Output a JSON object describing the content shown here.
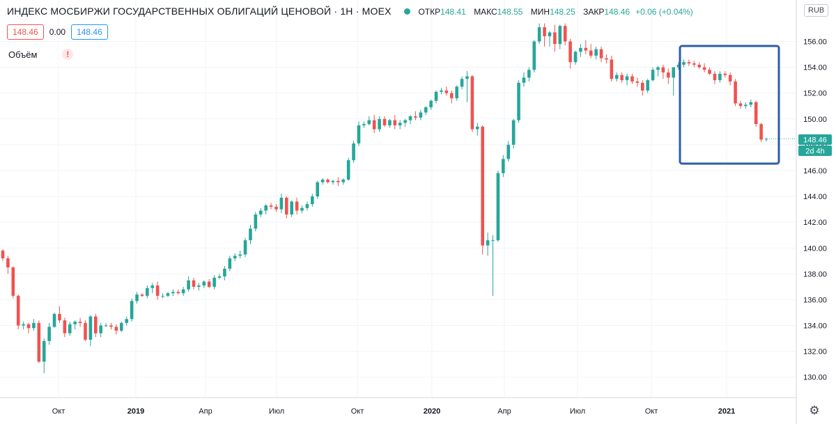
{
  "header": {
    "title": "ИНДЕКС МОСБИРЖИ ГОСУДАРСТВЕННЫХ ОБЛИГАЦИЙ ЦЕНОВОЙ · 1Н · MOEX",
    "open_label": "ОТКР",
    "open_value": "148.41",
    "high_label": "МАКС",
    "high_value": "148.55",
    "low_label": "МИН",
    "low_value": "148.25",
    "close_label": "ЗАКР",
    "close_value": "148.46",
    "change": "+0.06 (+0.04%)"
  },
  "controls": {
    "sell_price": "148.46",
    "spread": "0.00",
    "buy_price": "148.46"
  },
  "volume_label": "Объём",
  "currency": "RUB",
  "price_label": "148.46",
  "countdown_label": "2d 4h",
  "colors": {
    "up": "#26a69a",
    "down": "#ef5350",
    "highlight": "#2b5ea7",
    "grid": "#f0f3fa"
  },
  "chart_data": {
    "type": "candlestick",
    "title": "ИНДЕКС МОСБИРЖИ ГОСУДАРСТВЕННЫХ ОБЛИГАЦИЙ ЦЕНОВОЙ",
    "ylim": [
      129.5,
      157.7
    ],
    "y_ticks": [
      "130.00",
      "132.00",
      "134.00",
      "136.00",
      "138.00",
      "140.00",
      "142.00",
      "144.00",
      "146.00",
      "148.00",
      "150.00",
      "152.00",
      "154.00",
      "156.00"
    ],
    "x_ticks": [
      "Окт",
      "2019",
      "Апр",
      "Июл",
      "Окт",
      "2020",
      "Апр",
      "Июл",
      "Окт",
      "2021"
    ],
    "x_ticks_bold": [
      false,
      true,
      false,
      false,
      false,
      true,
      false,
      false,
      false,
      true
    ],
    "candles": [
      [
        139.8,
        139.9,
        139.0,
        139.2
      ],
      [
        139.2,
        139.4,
        138.0,
        138.5
      ],
      [
        138.5,
        138.6,
        136.1,
        136.3
      ],
      [
        136.3,
        136.4,
        133.7,
        134.0
      ],
      [
        134.0,
        134.3,
        133.7,
        134.1
      ],
      [
        134.1,
        134.2,
        133.4,
        133.8
      ],
      [
        133.8,
        134.5,
        133.6,
        134.2
      ],
      [
        134.2,
        134.4,
        131.1,
        131.2
      ],
      [
        131.2,
        133.0,
        130.3,
        132.8
      ],
      [
        132.8,
        134.2,
        132.5,
        133.9
      ],
      [
        133.9,
        135.0,
        133.8,
        134.9
      ],
      [
        134.9,
        135.5,
        134.2,
        134.4
      ],
      [
        134.4,
        134.6,
        133.1,
        133.4
      ],
      [
        133.4,
        134.3,
        133.2,
        134.1
      ],
      [
        134.1,
        134.4,
        133.7,
        134.3
      ],
      [
        134.3,
        134.6,
        133.9,
        134.2
      ],
      [
        134.2,
        134.4,
        132.8,
        132.9
      ],
      [
        132.9,
        134.8,
        132.4,
        134.7
      ],
      [
        134.7,
        134.9,
        133.1,
        133.4
      ],
      [
        133.4,
        134.2,
        133.1,
        134.0
      ],
      [
        134.0,
        134.2,
        133.9,
        134.0
      ],
      [
        134.0,
        134.2,
        133.7,
        133.9
      ],
      [
        133.9,
        134.1,
        133.3,
        133.6
      ],
      [
        133.6,
        134.3,
        133.5,
        134.2
      ],
      [
        134.2,
        134.7,
        134.0,
        134.5
      ],
      [
        134.5,
        136.1,
        134.3,
        135.9
      ],
      [
        135.9,
        136.6,
        135.7,
        136.4
      ],
      [
        136.4,
        136.5,
        136.2,
        136.3
      ],
      [
        136.3,
        137.1,
        136.1,
        136.9
      ],
      [
        136.9,
        137.3,
        136.5,
        137.1
      ],
      [
        137.1,
        137.4,
        136.0,
        136.3
      ],
      [
        136.3,
        136.5,
        136.1,
        136.3
      ],
      [
        136.3,
        136.6,
        136.2,
        136.5
      ],
      [
        136.5,
        136.8,
        136.3,
        136.6
      ],
      [
        136.6,
        136.8,
        136.4,
        136.5
      ],
      [
        136.5,
        137.0,
        136.3,
        136.8
      ],
      [
        136.8,
        137.8,
        136.6,
        137.5
      ],
      [
        137.5,
        137.7,
        136.8,
        137.0
      ],
      [
        137.0,
        137.3,
        136.7,
        137.1
      ],
      [
        137.1,
        137.5,
        136.9,
        137.4
      ],
      [
        137.4,
        137.6,
        136.9,
        137.0
      ],
      [
        137.0,
        137.9,
        136.8,
        137.7
      ],
      [
        137.7,
        138.0,
        137.6,
        137.8
      ],
      [
        137.8,
        138.6,
        137.5,
        138.4
      ],
      [
        138.4,
        139.4,
        138.2,
        139.2
      ],
      [
        139.2,
        139.6,
        139.0,
        139.4
      ],
      [
        139.4,
        139.8,
        139.2,
        139.5
      ],
      [
        139.5,
        140.8,
        139.3,
        140.6
      ],
      [
        140.6,
        141.8,
        140.3,
        141.5
      ],
      [
        141.5,
        142.8,
        141.3,
        142.6
      ],
      [
        142.6,
        143.1,
        142.4,
        142.9
      ],
      [
        142.9,
        143.4,
        142.6,
        143.3
      ],
      [
        143.3,
        143.5,
        143.0,
        143.2
      ],
      [
        143.2,
        143.4,
        142.8,
        143.0
      ],
      [
        143.0,
        144.2,
        142.7,
        143.9
      ],
      [
        143.9,
        144.0,
        142.3,
        142.6
      ],
      [
        142.6,
        143.7,
        142.4,
        143.6
      ],
      [
        143.6,
        143.9,
        142.6,
        142.9
      ],
      [
        142.9,
        143.3,
        142.7,
        143.1
      ],
      [
        143.1,
        143.6,
        142.9,
        143.4
      ],
      [
        143.4,
        144.2,
        143.2,
        144.0
      ],
      [
        144.0,
        145.2,
        143.8,
        145.1
      ],
      [
        145.1,
        145.4,
        144.9,
        145.3
      ],
      [
        145.3,
        145.4,
        145.0,
        145.1
      ],
      [
        145.1,
        145.3,
        144.9,
        145.2
      ],
      [
        145.2,
        145.5,
        144.8,
        145.1
      ],
      [
        145.1,
        145.4,
        144.9,
        145.3
      ],
      [
        145.3,
        147.0,
        145.2,
        146.8
      ],
      [
        146.8,
        148.3,
        146.6,
        148.1
      ],
      [
        148.1,
        149.8,
        147.9,
        149.5
      ],
      [
        149.5,
        149.8,
        149.3,
        149.6
      ],
      [
        149.6,
        150.2,
        149.5,
        149.9
      ],
      [
        149.9,
        150.3,
        148.9,
        149.2
      ],
      [
        149.2,
        150.2,
        149.0,
        150.0
      ],
      [
        150.0,
        150.2,
        149.4,
        149.5
      ],
      [
        149.5,
        150.0,
        149.3,
        149.9
      ],
      [
        149.9,
        150.3,
        149.2,
        149.5
      ],
      [
        149.5,
        149.9,
        149.2,
        149.7
      ],
      [
        149.7,
        150.0,
        149.4,
        149.9
      ],
      [
        149.9,
        150.3,
        149.6,
        150.2
      ],
      [
        150.2,
        150.6,
        149.9,
        150.1
      ],
      [
        150.1,
        150.7,
        149.9,
        150.5
      ],
      [
        150.5,
        151.0,
        150.3,
        150.9
      ],
      [
        150.9,
        151.5,
        150.7,
        151.4
      ],
      [
        151.4,
        152.2,
        151.2,
        152.1
      ],
      [
        152.1,
        152.4,
        151.9,
        152.2
      ],
      [
        152.2,
        152.5,
        151.8,
        152.0
      ],
      [
        152.0,
        152.2,
        151.2,
        151.6
      ],
      [
        151.6,
        152.6,
        151.4,
        152.5
      ],
      [
        152.5,
        153.3,
        152.3,
        153.1
      ],
      [
        153.1,
        153.7,
        151.3,
        153.3
      ],
      [
        153.3,
        153.4,
        149.0,
        149.2
      ],
      [
        149.2,
        149.7,
        148.7,
        149.4
      ],
      [
        149.4,
        149.5,
        139.5,
        140.2
      ],
      [
        140.2,
        141.2,
        139.4,
        140.6
      ],
      [
        140.6,
        141.0,
        136.3,
        140.6
      ],
      [
        140.6,
        146.0,
        140.5,
        145.8
      ],
      [
        145.8,
        147.2,
        145.5,
        146.9
      ],
      [
        146.9,
        148.3,
        146.7,
        148.0
      ],
      [
        148.0,
        150.0,
        147.7,
        149.9
      ],
      [
        149.9,
        153.0,
        149.7,
        152.8
      ],
      [
        152.8,
        153.6,
        152.5,
        153.2
      ],
      [
        153.2,
        154.0,
        152.9,
        153.8
      ],
      [
        153.8,
        156.1,
        153.6,
        156.0
      ],
      [
        156.0,
        157.4,
        155.8,
        157.1
      ],
      [
        157.1,
        157.4,
        155.6,
        156.4
      ],
      [
        156.4,
        156.8,
        155.6,
        156.7
      ],
      [
        156.7,
        157.3,
        155.2,
        155.8
      ],
      [
        155.8,
        157.3,
        155.4,
        157.2
      ],
      [
        157.2,
        157.4,
        155.7,
        156.0
      ],
      [
        156.0,
        156.2,
        153.9,
        154.4
      ],
      [
        154.4,
        155.3,
        154.2,
        155.2
      ],
      [
        155.2,
        155.8,
        154.8,
        155.5
      ],
      [
        155.5,
        156.1,
        155.0,
        155.3
      ],
      [
        155.3,
        155.8,
        154.7,
        154.9
      ],
      [
        154.9,
        155.6,
        154.6,
        155.4
      ],
      [
        155.4,
        155.6,
        154.4,
        154.7
      ],
      [
        154.7,
        155.0,
        154.3,
        154.6
      ],
      [
        154.6,
        154.9,
        152.9,
        153.1
      ],
      [
        153.1,
        153.6,
        152.9,
        153.4
      ],
      [
        153.4,
        153.6,
        152.8,
        153.0
      ],
      [
        153.0,
        153.5,
        152.6,
        153.3
      ],
      [
        153.3,
        153.5,
        152.7,
        152.9
      ],
      [
        152.9,
        153.2,
        152.5,
        152.8
      ],
      [
        152.8,
        153.0,
        151.8,
        152.2
      ],
      [
        152.2,
        153.1,
        152.0,
        153.0
      ],
      [
        153.0,
        154.0,
        152.9,
        153.8
      ],
      [
        153.8,
        154.1,
        153.3,
        154.0
      ],
      [
        154.0,
        154.2,
        153.1,
        153.6
      ],
      [
        153.6,
        153.9,
        152.7,
        153.2
      ],
      [
        153.2,
        154.0,
        151.8,
        154.0
      ],
      [
        154.0,
        154.4,
        153.8,
        154.2
      ],
      [
        154.2,
        154.6,
        154.0,
        154.4
      ],
      [
        154.4,
        154.6,
        154.1,
        154.3
      ],
      [
        154.3,
        154.5,
        154.0,
        154.2
      ],
      [
        154.2,
        154.4,
        153.9,
        154.0
      ],
      [
        154.0,
        154.3,
        153.6,
        153.8
      ],
      [
        153.8,
        154.0,
        153.4,
        153.5
      ],
      [
        153.5,
        153.7,
        152.7,
        153.0
      ],
      [
        153.0,
        153.7,
        152.8,
        153.5
      ],
      [
        153.5,
        153.7,
        153.2,
        153.4
      ],
      [
        153.4,
        153.6,
        152.6,
        152.9
      ],
      [
        152.9,
        153.1,
        151.0,
        151.2
      ],
      [
        151.2,
        151.4,
        150.8,
        151.0
      ],
      [
        151.0,
        151.3,
        150.8,
        151.1
      ],
      [
        151.1,
        151.5,
        150.9,
        151.3
      ],
      [
        151.3,
        151.4,
        149.4,
        149.6
      ],
      [
        149.6,
        149.7,
        148.2,
        148.4
      ],
      [
        148.41,
        148.55,
        148.25,
        148.46
      ]
    ]
  }
}
